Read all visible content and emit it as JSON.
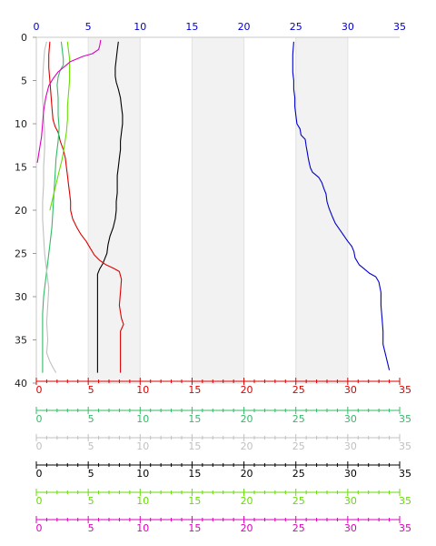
{
  "chart_data": {
    "type": "line",
    "title": "",
    "y_axis": {
      "range": [
        0,
        40
      ],
      "inverted": true,
      "ticks": [
        "0",
        "5",
        "10",
        "15",
        "20",
        "25",
        "30",
        "35",
        "40"
      ]
    },
    "top_axis": {
      "range": [
        0,
        35
      ],
      "ticks": [
        "0",
        "5",
        "10",
        "15",
        "20",
        "25",
        "30",
        "35"
      ],
      "color": "#0000cc"
    },
    "shaded_bands": [
      [
        5,
        10
      ],
      [
        15,
        20
      ],
      [
        25,
        30
      ]
    ],
    "grid": false,
    "bottom_axes": [
      {
        "color": "#dd0000",
        "ticks": [
          "0",
          "5",
          "10",
          "15",
          "20",
          "25",
          "30",
          "35"
        ]
      },
      {
        "color": "#33bb66",
        "ticks": [
          "0",
          "5",
          "10",
          "15",
          "20",
          "25",
          "30",
          "35"
        ]
      },
      {
        "color": "#c0c0c0",
        "ticks": [
          "0",
          "5",
          "10",
          "15",
          "20",
          "25",
          "30",
          "35"
        ]
      },
      {
        "color": "#000000",
        "ticks": [
          "0",
          "5",
          "10",
          "15",
          "20",
          "25",
          "30",
          "35"
        ]
      },
      {
        "color": "#66dd00",
        "ticks": [
          "0",
          "5",
          "10",
          "15",
          "20",
          "25",
          "30",
          "35"
        ]
      },
      {
        "color": "#dd00bb",
        "ticks": [
          "0",
          "5",
          "10",
          "15",
          "20",
          "25",
          "30",
          "35"
        ]
      }
    ],
    "series": [
      {
        "color": "#0000cc",
        "values": [
          [
            24.8,
            0.5
          ],
          [
            24.7,
            2
          ],
          [
            24.7,
            4
          ],
          [
            24.8,
            5
          ],
          [
            24.8,
            6
          ],
          [
            24.9,
            7
          ],
          [
            24.9,
            8
          ],
          [
            25.0,
            9
          ],
          [
            25.1,
            10
          ],
          [
            25.4,
            10.6
          ],
          [
            25.5,
            11.3
          ],
          [
            25.9,
            11.8
          ],
          [
            26.0,
            12.6
          ],
          [
            26.1,
            13.3
          ],
          [
            26.2,
            14.0
          ],
          [
            26.3,
            14.6
          ],
          [
            26.4,
            15.1
          ],
          [
            26.6,
            15.6
          ],
          [
            27.2,
            16.2
          ],
          [
            27.5,
            16.8
          ],
          [
            27.7,
            17.5
          ],
          [
            27.9,
            18.1
          ],
          [
            28.0,
            19.0
          ],
          [
            28.2,
            19.8
          ],
          [
            28.5,
            20.7
          ],
          [
            28.8,
            21.5
          ],
          [
            29.2,
            22.2
          ],
          [
            29.6,
            22.9
          ],
          [
            30.0,
            23.6
          ],
          [
            30.4,
            24.2
          ],
          [
            30.6,
            24.8
          ],
          [
            30.7,
            25.5
          ],
          [
            31.1,
            26.3
          ],
          [
            31.6,
            26.8
          ],
          [
            32.1,
            27.3
          ],
          [
            32.7,
            27.7
          ],
          [
            33.0,
            28.3
          ],
          [
            33.2,
            29.5
          ],
          [
            33.2,
            31.0
          ],
          [
            33.3,
            32.5
          ],
          [
            33.4,
            34.0
          ],
          [
            33.4,
            35.5
          ],
          [
            33.6,
            36.5
          ],
          [
            33.8,
            37.5
          ],
          [
            34.0,
            38.5
          ]
        ]
      },
      {
        "color": "#000000",
        "values": [
          [
            7.9,
            0.5
          ],
          [
            7.8,
            1.5
          ],
          [
            7.7,
            2.5
          ],
          [
            7.6,
            3.5
          ],
          [
            7.6,
            4.5
          ],
          [
            7.7,
            5.2
          ],
          [
            7.9,
            6.0
          ],
          [
            8.1,
            7.0
          ],
          [
            8.2,
            8.0
          ],
          [
            8.3,
            9.0
          ],
          [
            8.3,
            10.0
          ],
          [
            8.2,
            11.0
          ],
          [
            8.1,
            12.0
          ],
          [
            8.1,
            13.0
          ],
          [
            8.0,
            14.0
          ],
          [
            7.9,
            15.0
          ],
          [
            7.8,
            16.0
          ],
          [
            7.8,
            17.0
          ],
          [
            7.8,
            18.0
          ],
          [
            7.7,
            19.0
          ],
          [
            7.7,
            20.0
          ],
          [
            7.6,
            21.0
          ],
          [
            7.4,
            22.0
          ],
          [
            7.1,
            23.0
          ],
          [
            6.9,
            24.0
          ],
          [
            6.8,
            25.0
          ],
          [
            6.6,
            25.6
          ],
          [
            6.4,
            26.2
          ],
          [
            6.1,
            26.8
          ],
          [
            5.9,
            27.4
          ],
          [
            5.9,
            28.0
          ],
          [
            5.9,
            30.0
          ],
          [
            5.9,
            32.0
          ],
          [
            5.9,
            34.0
          ],
          [
            5.9,
            36.0
          ],
          [
            5.9,
            38.0
          ],
          [
            5.9,
            38.8
          ]
        ]
      },
      {
        "color": "#dd0000",
        "values": [
          [
            1.3,
            0.5
          ],
          [
            1.2,
            2.0
          ],
          [
            1.2,
            3.5
          ],
          [
            1.3,
            5.0
          ],
          [
            1.4,
            6.5
          ],
          [
            1.5,
            8.0
          ],
          [
            1.6,
            9.5
          ],
          [
            1.8,
            10.3
          ],
          [
            2.1,
            11.0
          ],
          [
            2.3,
            12.0
          ],
          [
            2.6,
            13.0
          ],
          [
            2.8,
            14.0
          ],
          [
            2.9,
            15.0
          ],
          [
            3.0,
            16.0
          ],
          [
            3.1,
            17.0
          ],
          [
            3.2,
            18.0
          ],
          [
            3.3,
            19.0
          ],
          [
            3.3,
            20.0
          ],
          [
            3.5,
            21.0
          ],
          [
            3.9,
            22.0
          ],
          [
            4.3,
            22.8
          ],
          [
            4.8,
            23.6
          ],
          [
            5.2,
            24.4
          ],
          [
            5.6,
            25.2
          ],
          [
            6.1,
            25.8
          ],
          [
            6.7,
            26.3
          ],
          [
            7.4,
            26.7
          ],
          [
            8.0,
            27.1
          ],
          [
            8.2,
            28.0
          ],
          [
            8.1,
            29.5
          ],
          [
            8.0,
            31.0
          ],
          [
            8.2,
            32.5
          ],
          [
            8.4,
            33.2
          ],
          [
            8.1,
            34.0
          ],
          [
            8.1,
            36.0
          ],
          [
            8.1,
            38.8
          ]
        ]
      },
      {
        "color": "#33bb66",
        "values": [
          [
            2.4,
            0.5
          ],
          [
            2.5,
            1.5
          ],
          [
            2.6,
            2.5
          ],
          [
            2.6,
            3.2
          ],
          [
            2.3,
            3.8
          ],
          [
            2.1,
            4.6
          ],
          [
            2.0,
            5.5
          ],
          [
            2.1,
            7.0
          ],
          [
            2.1,
            9.0
          ],
          [
            2.2,
            10.5
          ],
          [
            2.1,
            12.0
          ],
          [
            1.9,
            14.0
          ],
          [
            1.8,
            16.0
          ],
          [
            1.7,
            18.0
          ],
          [
            1.6,
            20.0
          ],
          [
            1.5,
            22.0
          ],
          [
            1.3,
            24.0
          ],
          [
            1.1,
            26.0
          ],
          [
            0.9,
            28.0
          ],
          [
            0.7,
            30.0
          ],
          [
            0.6,
            32.0
          ],
          [
            0.6,
            34.0
          ],
          [
            0.6,
            36.0
          ],
          [
            0.6,
            38.8
          ]
        ]
      },
      {
        "color": "#c0c0c0",
        "values": [
          [
            1.0,
            0.5
          ],
          [
            0.8,
            1.5
          ],
          [
            0.7,
            3.0
          ],
          [
            0.6,
            5.0
          ],
          [
            0.6,
            7.0
          ],
          [
            0.7,
            9.0
          ],
          [
            0.8,
            11.0
          ],
          [
            0.8,
            13.0
          ],
          [
            0.7,
            15.0
          ],
          [
            0.7,
            17.0
          ],
          [
            0.6,
            19.0
          ],
          [
            0.6,
            21.0
          ],
          [
            0.7,
            23.0
          ],
          [
            0.8,
            25.0
          ],
          [
            1.0,
            27.0
          ],
          [
            1.2,
            29.0
          ],
          [
            1.1,
            31.0
          ],
          [
            1.0,
            33.0
          ],
          [
            1.1,
            35.0
          ],
          [
            1.0,
            36.5
          ],
          [
            1.3,
            37.5
          ],
          [
            1.6,
            38.2
          ],
          [
            1.9,
            38.8
          ]
        ]
      },
      {
        "color": "#66dd00",
        "values": [
          [
            3.0,
            0.5
          ],
          [
            3.1,
            1.5
          ],
          [
            3.2,
            2.5
          ],
          [
            3.2,
            3.5
          ],
          [
            3.2,
            5.0
          ],
          [
            3.1,
            6.5
          ],
          [
            3.0,
            8.0
          ],
          [
            3.0,
            9.5
          ],
          [
            2.9,
            11.0
          ],
          [
            2.7,
            12.5
          ],
          [
            2.5,
            14.0
          ],
          [
            2.2,
            15.5
          ],
          [
            1.9,
            17.0
          ],
          [
            1.6,
            18.5
          ],
          [
            1.3,
            20.0
          ]
        ]
      },
      {
        "color": "#dd00bb",
        "values": [
          [
            6.2,
            0.3
          ],
          [
            6.1,
            1.0
          ],
          [
            6.0,
            1.4
          ],
          [
            5.4,
            1.9
          ],
          [
            4.5,
            2.2
          ],
          [
            3.3,
            2.8
          ],
          [
            2.8,
            3.3
          ],
          [
            2.1,
            4.0
          ],
          [
            1.6,
            4.8
          ],
          [
            1.2,
            5.6
          ],
          [
            0.9,
            7.0
          ],
          [
            0.7,
            8.5
          ],
          [
            0.6,
            10.0
          ],
          [
            0.5,
            11.5
          ],
          [
            0.3,
            13.0
          ],
          [
            0.1,
            14.5
          ]
        ]
      }
    ]
  }
}
